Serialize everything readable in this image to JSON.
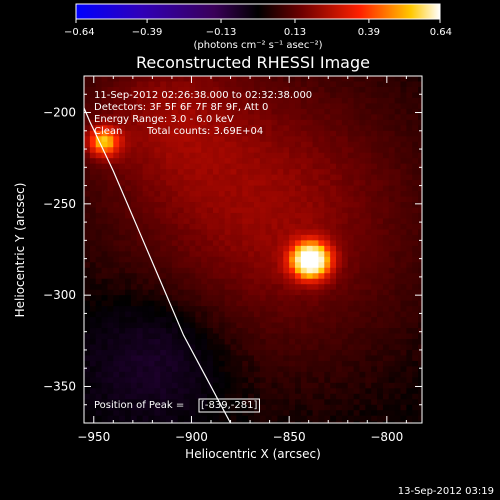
{
  "chart_data": {
    "type": "heatmap",
    "title": "Reconstructed RHESSI Image",
    "xlabel": "Heliocentric X (arcsec)",
    "ylabel": "Heliocentric Y (arcsec)",
    "xlim": [
      -955,
      -782
    ],
    "ylim": [
      -370,
      -180
    ],
    "xticks": [
      -950,
      -900,
      -850,
      -800
    ],
    "xtick_labels": [
      "−950",
      "−900",
      "−850",
      "−800"
    ],
    "yticks": [
      -200,
      -250,
      -300,
      -350
    ],
    "ytick_labels": [
      "−200",
      "−250",
      "−300",
      "−350"
    ],
    "colorbar": {
      "range": [
        -0.64,
        0.64
      ],
      "ticks": [
        -0.64,
        -0.39,
        -0.13,
        0.13,
        0.39,
        0.64
      ],
      "tick_labels": [
        "−0.64",
        "−0.39",
        "−0.13",
        "0.13",
        "0.39",
        "0.64"
      ],
      "label": "(photons cm⁻² s⁻¹ asec⁻²)"
    },
    "annotations": {
      "time_range": "11-Sep-2012 02:26:38.000 to 02:32:38.000",
      "detectors": "Detectors: 3F 5F 6F 7F 8F 9F, Att 0",
      "energy_range": "Energy Range: 3.0 - 6.0 keV",
      "method": "Clean",
      "total_counts": "Total counts: 3.69E+04",
      "peak_label": "Position of Peak =",
      "peak_value": "[-839,-281]"
    },
    "sources": [
      {
        "x": -839,
        "y": -281,
        "peak": 0.64,
        "sigma": 7
      },
      {
        "x": -945,
        "y": -216,
        "peak": 0.38,
        "sigma": 6
      }
    ],
    "diffuse_emission": [
      {
        "x": -860,
        "y": -255,
        "peak": 0.18,
        "sigma": 55
      },
      {
        "x": -915,
        "y": -200,
        "peak": 0.12,
        "sigma": 30
      }
    ],
    "limb": {
      "x": [
        -962,
        -952,
        -940,
        -928,
        -916,
        -904,
        -892,
        -880
      ],
      "y": [
        -180,
        -205,
        -232,
        -262,
        -292,
        -322,
        -346,
        -370
      ]
    },
    "footer": "13-Sep-2012 03:19"
  }
}
